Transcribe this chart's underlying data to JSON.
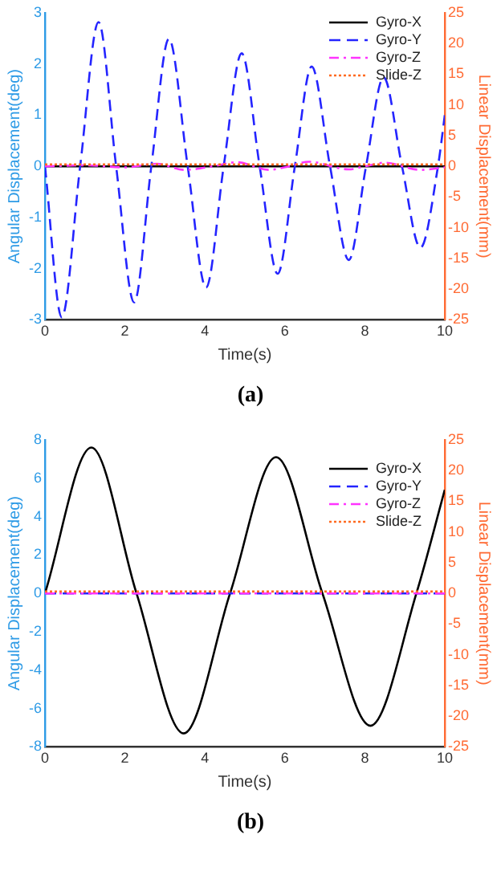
{
  "chart_data": [
    {
      "type": "line",
      "xlabel": "Time(s)",
      "ylabel": "Angular Displacement(deg)",
      "y2label": "Linear Displacement(mm)",
      "annotations": [
        "(a)"
      ],
      "legend": "top right",
      "grid": false,
      "xlim": [
        0,
        10
      ],
      "xticks": [
        0,
        2,
        4,
        6,
        8,
        10
      ],
      "ylim": [
        -3,
        3
      ],
      "yticks": [
        -3,
        -2,
        -1,
        0,
        1,
        2,
        3
      ],
      "y2lim": [
        -25,
        25
      ],
      "y2ticks": [
        -25,
        -20,
        -15,
        -10,
        -5,
        0,
        5,
        10,
        15,
        20,
        25
      ],
      "series": [
        {
          "name": "Gyro-X",
          "color": "#000000",
          "line_style": "solid",
          "x": [
            0,
            2,
            4,
            6,
            8,
            10
          ],
          "values": [
            0,
            0,
            0,
            0,
            0,
            0
          ]
        },
        {
          "name": "Gyro-Y",
          "color": "#2424ff",
          "line_style": "dashed",
          "x": [
            0,
            0.42,
            0.88,
            1.34,
            1.78,
            2.23,
            2.66,
            3.1,
            3.57,
            4.03,
            4.47,
            4.92,
            5.37,
            5.82,
            6.25,
            6.67,
            7.13,
            7.6,
            8.03,
            8.47,
            8.93,
            9.39,
            9.83,
            10
          ],
          "values": [
            0,
            -2.95,
            0,
            2.82,
            0,
            -2.66,
            0,
            2.49,
            0,
            -2.37,
            0,
            2.21,
            0,
            -2.1,
            0,
            1.95,
            0,
            -1.83,
            0,
            1.74,
            0,
            -1.59,
            0,
            1
          ]
        },
        {
          "name": "Gyro-Z",
          "color": "#ff33ff",
          "line_style": "dashdot",
          "x": [
            0,
            1,
            2,
            2.8,
            3.5,
            4.2,
            4.8,
            5.6,
            6.1,
            6.6,
            7.6,
            8,
            8.5,
            9.4,
            10
          ],
          "values": [
            0,
            0.02,
            -0.02,
            0.05,
            -0.07,
            0,
            0.08,
            -0.07,
            0,
            0.09,
            -0.06,
            0,
            0.07,
            -0.07,
            -0.02
          ]
        },
        {
          "name": "Slide-Z",
          "color": "#ff6a20",
          "line_style": "dotted",
          "axis": "y2",
          "x": [
            0,
            5,
            10
          ],
          "values": [
            0.3,
            0.3,
            0.3
          ]
        }
      ]
    },
    {
      "type": "line",
      "xlabel": "Time(s)",
      "ylabel": "Angular Displacement(deg)",
      "y2label": "Linear Displacement(mm)",
      "annotations": [
        "(b)"
      ],
      "legend": "top right",
      "grid": false,
      "xlim": [
        0,
        10
      ],
      "xticks": [
        0,
        2,
        4,
        6,
        8,
        10
      ],
      "ylim": [
        -8,
        8
      ],
      "yticks": [
        -8,
        -6,
        -4,
        -2,
        0,
        2,
        4,
        6,
        8
      ],
      "y2lim": [
        -25,
        25
      ],
      "y2ticks": [
        -25,
        -20,
        -15,
        -10,
        -5,
        0,
        5,
        10,
        15,
        20,
        25
      ],
      "series": [
        {
          "name": "Gyro-X",
          "color": "#000000",
          "line_style": "solid",
          "x": [
            0,
            1.16,
            2.29,
            3.47,
            4.63,
            5.78,
            6.94,
            8.14,
            9.29,
            10
          ],
          "values": [
            0,
            7.6,
            0,
            -7.3,
            0,
            7.1,
            0,
            -6.9,
            0,
            5.4
          ]
        },
        {
          "name": "Gyro-Y",
          "color": "#2424ff",
          "line_style": "dashed",
          "x": [
            0,
            5,
            10
          ],
          "values": [
            0,
            0,
            0
          ]
        },
        {
          "name": "Gyro-Z",
          "color": "#ff33ff",
          "line_style": "dashdot",
          "x": [
            0,
            5,
            10
          ],
          "values": [
            0,
            0,
            0
          ]
        },
        {
          "name": "Slide-Z",
          "color": "#ff6a20",
          "line_style": "dotted",
          "axis": "y2",
          "x": [
            0,
            5,
            10
          ],
          "values": [
            0.3,
            0.3,
            0.3
          ]
        }
      ]
    }
  ]
}
